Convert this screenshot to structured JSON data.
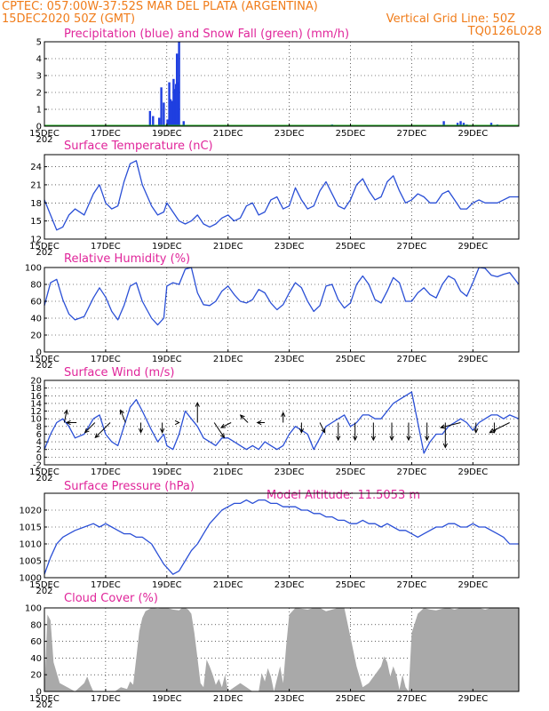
{
  "header": {
    "line1_left": "CPTEC:   057:00W-37:52S   MAR DEL PLATA (ARGENTINA)",
    "line2_left": "15DEC2020 50Z (GMT)",
    "line2_right": "Vertical Grid Line: 50Z",
    "line3_right": "TQ0126L028",
    "altitude_label": "Model Altitude: 11.5053 m"
  },
  "colors": {
    "header": "#f07c1a",
    "title": "#e0259a",
    "line": "#2a4fd6",
    "precip": "#1f3fe0",
    "snow": "#1aa31a",
    "cloud": "#a9a9a9"
  },
  "x_axis": {
    "dates": [
      "15DEC",
      "17DEC",
      "19DEC",
      "21DEC",
      "23DEC",
      "25DEC",
      "27DEC",
      "29DEC"
    ],
    "days": [
      0,
      2,
      4,
      6,
      8,
      10,
      12,
      14
    ],
    "day_min": 0,
    "day_max": 15.5,
    "year_stub": "202"
  },
  "chart_data": [
    {
      "type": "bar",
      "title": "Precipitation (blue) and Snow Fall (green) (mm/h)",
      "ylim": [
        0,
        5
      ],
      "yticks": [
        "0",
        "1",
        "2",
        "3",
        "4",
        "5"
      ],
      "series": [
        {
          "name": "Precipitation",
          "x": [
            3.45,
            3.55,
            3.75,
            3.82,
            3.9,
            4.02,
            4.08,
            4.12,
            4.18,
            4.22,
            4.26,
            4.3,
            4.33,
            4.36,
            4.4,
            4.55,
            9.4,
            13.05,
            13.5,
            13.6,
            13.7,
            13.8,
            14.6,
            14.8
          ],
          "values": [
            0.9,
            0.6,
            0.5,
            2.3,
            1.4,
            0.4,
            2.6,
            1.6,
            1.5,
            2.8,
            2.2,
            2.5,
            4.3,
            2.6,
            5.0,
            0.3,
            0.1,
            0.3,
            0.2,
            0.3,
            0.2,
            0.1,
            0.2,
            0.1
          ]
        },
        {
          "name": "Snow Fall",
          "x": [],
          "values": []
        }
      ]
    },
    {
      "type": "line",
      "title": "Surface Temperature (nC)",
      "ylim": [
        12,
        26
      ],
      "yticks": [
        "12",
        "15",
        "18",
        "21",
        "24"
      ],
      "x": [
        0,
        0.2,
        0.4,
        0.6,
        0.8,
        1.0,
        1.3,
        1.6,
        1.8,
        2.0,
        2.2,
        2.4,
        2.6,
        2.8,
        3.0,
        3.2,
        3.5,
        3.7,
        3.9,
        4.0,
        4.2,
        4.4,
        4.6,
        4.8,
        5.0,
        5.2,
        5.4,
        5.6,
        5.8,
        6.0,
        6.2,
        6.4,
        6.6,
        6.8,
        7.0,
        7.2,
        7.4,
        7.6,
        7.8,
        8.0,
        8.2,
        8.4,
        8.6,
        8.8,
        9.0,
        9.2,
        9.4,
        9.6,
        9.8,
        10.0,
        10.2,
        10.4,
        10.6,
        10.8,
        11.0,
        11.2,
        11.4,
        11.6,
        11.8,
        12.0,
        12.2,
        12.4,
        12.6,
        12.8,
        13.0,
        13.2,
        13.4,
        13.6,
        13.8,
        14.0,
        14.2,
        14.4,
        14.6,
        14.8,
        15.0,
        15.2,
        15.5
      ],
      "series": [
        {
          "values": [
            18.5,
            16.0,
            13.5,
            14.0,
            16.0,
            17.0,
            16.0,
            19.5,
            21.0,
            18.0,
            17.0,
            17.5,
            21.5,
            24.5,
            25.0,
            21.0,
            17.5,
            16.0,
            16.5,
            18.0,
            16.5,
            15.0,
            14.5,
            15.0,
            16.0,
            14.5,
            14.0,
            14.5,
            15.5,
            16.0,
            15.0,
            15.5,
            17.5,
            18.0,
            16.0,
            16.5,
            18.5,
            19.0,
            17.0,
            17.5,
            20.5,
            18.5,
            17.0,
            17.5,
            20.0,
            21.5,
            19.5,
            17.5,
            17.0,
            18.5,
            21.0,
            22.0,
            20.0,
            18.5,
            19.0,
            21.5,
            22.5,
            20.0,
            18.0,
            18.5,
            19.5,
            19.0,
            18.0,
            18.0,
            19.5,
            20.0,
            18.5,
            17.0,
            17.0,
            18.0,
            18.5,
            18.0,
            18.0,
            18.0,
            18.5,
            19.0,
            19.0
          ]
        }
      ]
    },
    {
      "type": "line",
      "title": "Relative Humidity (%)",
      "ylim": [
        0,
        100
      ],
      "yticks": [
        "0",
        "20",
        "40",
        "60",
        "80",
        "100"
      ],
      "x": [
        0,
        0.2,
        0.4,
        0.6,
        0.8,
        1.0,
        1.3,
        1.6,
        1.8,
        2.0,
        2.2,
        2.4,
        2.6,
        2.8,
        3.0,
        3.2,
        3.5,
        3.7,
        3.9,
        4.0,
        4.2,
        4.4,
        4.6,
        4.8,
        5.0,
        5.2,
        5.4,
        5.6,
        5.8,
        6.0,
        6.2,
        6.4,
        6.6,
        6.8,
        7.0,
        7.2,
        7.4,
        7.6,
        7.8,
        8.0,
        8.2,
        8.4,
        8.6,
        8.8,
        9.0,
        9.2,
        9.4,
        9.6,
        9.8,
        10.0,
        10.2,
        10.4,
        10.6,
        10.8,
        11.0,
        11.2,
        11.4,
        11.6,
        11.8,
        12.0,
        12.2,
        12.4,
        12.6,
        12.8,
        13.0,
        13.2,
        13.4,
        13.6,
        13.8,
        14.0,
        14.2,
        14.4,
        14.6,
        14.8,
        15.0,
        15.2,
        15.5
      ],
      "series": [
        {
          "values": [
            55,
            82,
            86,
            62,
            45,
            38,
            42,
            64,
            76,
            65,
            48,
            38,
            55,
            78,
            82,
            60,
            40,
            32,
            40,
            78,
            82,
            80,
            98,
            100,
            70,
            56,
            55,
            60,
            72,
            78,
            68,
            60,
            58,
            62,
            74,
            70,
            58,
            50,
            56,
            70,
            82,
            76,
            60,
            48,
            55,
            78,
            80,
            62,
            52,
            58,
            80,
            90,
            80,
            62,
            58,
            72,
            88,
            82,
            60,
            60,
            70,
            76,
            68,
            64,
            80,
            90,
            86,
            72,
            66,
            82,
            100,
            99,
            91,
            89,
            92,
            94,
            80
          ]
        }
      ]
    },
    {
      "type": "line",
      "title": "Surface Wind (m/s)",
      "ylim": [
        -2,
        20
      ],
      "yticks": [
        "-2",
        "0",
        "2",
        "4",
        "6",
        "8",
        "10",
        "12",
        "14",
        "16",
        "18",
        "20"
      ],
      "x": [
        0,
        0.2,
        0.4,
        0.6,
        0.8,
        1.0,
        1.3,
        1.6,
        1.8,
        2.0,
        2.2,
        2.4,
        2.6,
        2.8,
        3.0,
        3.2,
        3.5,
        3.7,
        3.9,
        4.0,
        4.2,
        4.4,
        4.6,
        4.8,
        5.0,
        5.2,
        5.4,
        5.6,
        5.8,
        6.0,
        6.2,
        6.4,
        6.6,
        6.8,
        7.0,
        7.2,
        7.4,
        7.6,
        7.8,
        8.0,
        8.2,
        8.4,
        8.6,
        8.8,
        9.0,
        9.2,
        9.4,
        9.6,
        9.8,
        10.0,
        10.2,
        10.4,
        10.6,
        10.8,
        11.0,
        11.2,
        11.4,
        11.6,
        11.8,
        12.0,
        12.2,
        12.4,
        12.6,
        12.8,
        13.0,
        13.2,
        13.4,
        13.6,
        13.8,
        14.0,
        14.2,
        14.4,
        14.6,
        14.8,
        15.0,
        15.2,
        15.5
      ],
      "series": [
        {
          "values": [
            2,
            6,
            9,
            10,
            8,
            5,
            6,
            10,
            11,
            6,
            4,
            3,
            8,
            13,
            15,
            12,
            7,
            4,
            6,
            3,
            2,
            6,
            12,
            10,
            8,
            5,
            4,
            3,
            5,
            5,
            4,
            3,
            2,
            3,
            2,
            4,
            3,
            2,
            3,
            6,
            8,
            7,
            6,
            2,
            5,
            8,
            9,
            10,
            11,
            8,
            9,
            11,
            11,
            10,
            10,
            12,
            14,
            15,
            16,
            17,
            9,
            1,
            4,
            6,
            6,
            8,
            9,
            10,
            9,
            7,
            9,
            10,
            11,
            11,
            10,
            11,
            10
          ]
        }
      ]
    },
    {
      "type": "line",
      "title": "Surface Pressure (hPa)",
      "ylim": [
        1000,
        1025
      ],
      "yticks": [
        "1000",
        "1005",
        "1010",
        "1015",
        "1020"
      ],
      "x": [
        0,
        0.2,
        0.4,
        0.6,
        0.8,
        1.0,
        1.3,
        1.6,
        1.8,
        2.0,
        2.2,
        2.4,
        2.6,
        2.8,
        3.0,
        3.2,
        3.5,
        3.7,
        3.9,
        4.0,
        4.2,
        4.4,
        4.6,
        4.8,
        5.0,
        5.2,
        5.4,
        5.6,
        5.8,
        6.0,
        6.2,
        6.4,
        6.6,
        6.8,
        7.0,
        7.2,
        7.4,
        7.6,
        7.8,
        8.0,
        8.2,
        8.4,
        8.6,
        8.8,
        9.0,
        9.2,
        9.4,
        9.6,
        9.8,
        10.0,
        10.2,
        10.4,
        10.6,
        10.8,
        11.0,
        11.2,
        11.4,
        11.6,
        11.8,
        12.0,
        12.2,
        12.4,
        12.6,
        12.8,
        13.0,
        13.2,
        13.4,
        13.6,
        13.8,
        14.0,
        14.2,
        14.4,
        14.6,
        14.8,
        15.0,
        15.2,
        15.5
      ],
      "series": [
        {
          "values": [
            1001,
            1006,
            1010,
            1012,
            1013,
            1014,
            1015,
            1016,
            1015,
            1016,
            1015,
            1014,
            1013,
            1013,
            1012,
            1012,
            1010,
            1007,
            1004,
            1003,
            1001,
            1002,
            1005,
            1008,
            1010,
            1013,
            1016,
            1018,
            1020,
            1021,
            1022,
            1022,
            1023,
            1022,
            1023,
            1023,
            1022,
            1022,
            1021,
            1021,
            1021,
            1020,
            1020,
            1019,
            1019,
            1018,
            1018,
            1017,
            1017,
            1016,
            1016,
            1017,
            1016,
            1016,
            1015,
            1016,
            1015,
            1014,
            1014,
            1013,
            1012,
            1013,
            1014,
            1015,
            1015,
            1016,
            1016,
            1015,
            1015,
            1016,
            1015,
            1015,
            1014,
            1013,
            1012,
            1010,
            1010
          ]
        }
      ]
    },
    {
      "type": "area",
      "title": "Cloud Cover (%)",
      "ylim": [
        0,
        100
      ],
      "yticks": [
        "0",
        "20",
        "40",
        "60",
        "80",
        "100"
      ],
      "x": [
        0,
        0.1,
        0.2,
        0.3,
        0.5,
        1.0,
        1.3,
        1.4,
        1.5,
        1.6,
        2.0,
        2.3,
        2.5,
        2.7,
        2.8,
        2.9,
        3.0,
        3.1,
        3.2,
        3.3,
        3.4,
        3.5,
        3.7,
        3.9,
        4.0,
        4.2,
        4.4,
        4.5,
        4.6,
        4.7,
        4.8,
        4.9,
        5.0,
        5.1,
        5.2,
        5.3,
        5.4,
        5.5,
        5.6,
        5.7,
        5.8,
        5.9,
        6.0,
        6.2,
        6.4,
        6.6,
        6.8,
        7.0,
        7.1,
        7.2,
        7.3,
        7.4,
        7.5,
        7.6,
        7.7,
        7.8,
        7.9,
        8.0,
        8.2,
        8.4,
        8.6,
        8.8,
        9.0,
        9.2,
        9.4,
        9.6,
        9.8,
        10.0,
        10.2,
        10.4,
        10.6,
        10.8,
        11.0,
        11.1,
        11.2,
        11.3,
        11.4,
        11.5,
        11.6,
        11.7,
        11.8,
        11.9,
        12.0,
        12.2,
        12.4,
        12.6,
        12.8,
        13.0,
        13.2,
        13.4,
        13.6,
        13.8,
        14.0,
        14.2,
        14.4,
        14.6,
        14.8,
        15.0,
        15.2,
        15.5
      ],
      "series": [
        {
          "name": "Cloud Cover",
          "values": [
            0,
            92,
            85,
            35,
            10,
            0,
            10,
            18,
            8,
            0,
            0,
            0,
            5,
            3,
            12,
            8,
            40,
            72,
            88,
            96,
            98,
            100,
            99,
            100,
            100,
            98,
            97,
            100,
            100,
            98,
            93,
            70,
            40,
            10,
            5,
            38,
            30,
            20,
            8,
            15,
            5,
            20,
            0,
            5,
            10,
            5,
            0,
            0,
            22,
            12,
            28,
            18,
            0,
            15,
            30,
            10,
            55,
            92,
            100,
            99,
            98,
            100,
            100,
            96,
            98,
            100,
            100,
            65,
            30,
            5,
            10,
            20,
            30,
            42,
            35,
            18,
            30,
            20,
            2,
            20,
            5,
            0,
            70,
            93,
            100,
            98,
            97,
            99,
            100,
            98,
            100,
            100,
            100,
            100,
            98,
            100,
            100,
            100,
            100,
            100
          ]
        }
      ]
    }
  ],
  "wind_vectors": {
    "x": [
      0.65,
      1.05,
      1.65,
      2.15,
      2.65,
      3.15,
      3.85,
      4.4,
      5.0,
      5.55,
      6.1,
      6.65,
      7.2,
      7.8,
      8.4,
      9.0,
      9.6,
      10.15,
      10.75,
      11.35,
      11.9,
      12.5,
      13.1,
      13.6,
      14.1,
      14.7,
      15.2
    ],
    "u": [
      1,
      -4,
      -4,
      -6,
      -2,
      0,
      0,
      0,
      0,
      4,
      -4,
      -3,
      -3,
      0,
      0,
      2,
      0,
      0,
      0,
      0,
      0,
      0,
      0,
      -8,
      0,
      0,
      -8
    ],
    "v": [
      5,
      0,
      -4,
      -6,
      5,
      -4,
      -4,
      0,
      8,
      -6,
      -2,
      3,
      0,
      4,
      -4,
      -4,
      -7,
      -7,
      -7,
      -7,
      -7,
      -7,
      -10,
      -2,
      -4,
      -4,
      -4
    ]
  }
}
